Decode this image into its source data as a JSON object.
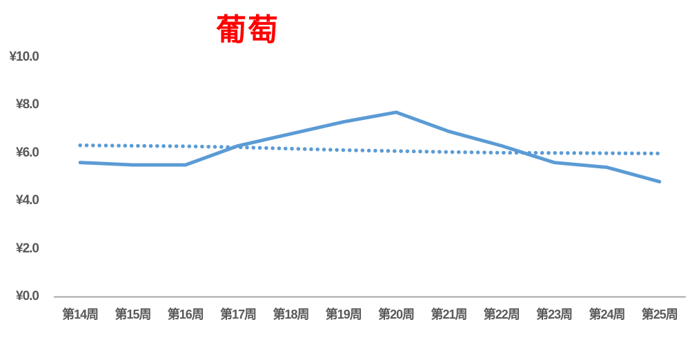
{
  "page": {
    "background": "#FFFFFF"
  },
  "chart_data": {
    "type": "line",
    "title": "葡萄",
    "title_color": "#FF0000",
    "categories": [
      "第14周",
      "第15周",
      "第16周",
      "第17周",
      "第18周",
      "第19周",
      "第20周",
      "第21周",
      "第22周",
      "第23周",
      "第24周",
      "第25周"
    ],
    "series": [
      {
        "name": "weekly-price-solid",
        "style": "solid",
        "color": "#5B9BD5",
        "values": [
          5.6,
          5.5,
          5.5,
          6.3,
          6.8,
          7.3,
          7.7,
          6.9,
          6.3,
          5.6,
          5.4,
          4.8
        ]
      },
      {
        "name": "reference-price-dotted",
        "style": "dotted",
        "color": "#5B9BD5",
        "values": [
          6.32,
          6.3,
          6.28,
          6.24,
          6.18,
          6.12,
          6.08,
          6.04,
          6.01,
          6.0,
          5.99,
          5.98
        ]
      }
    ],
    "ylim": [
      0,
      10
    ],
    "ytick_step": 2,
    "ytick_labels": [
      "¥0.0",
      "¥2.0",
      "¥4.0",
      "¥6.0",
      "¥8.0",
      "¥10.0"
    ],
    "xlabel": "",
    "ylabel": "",
    "grid": false,
    "legend": "none",
    "axis_line_color": "#A6A6A6",
    "tick_label_color": "#595959"
  }
}
